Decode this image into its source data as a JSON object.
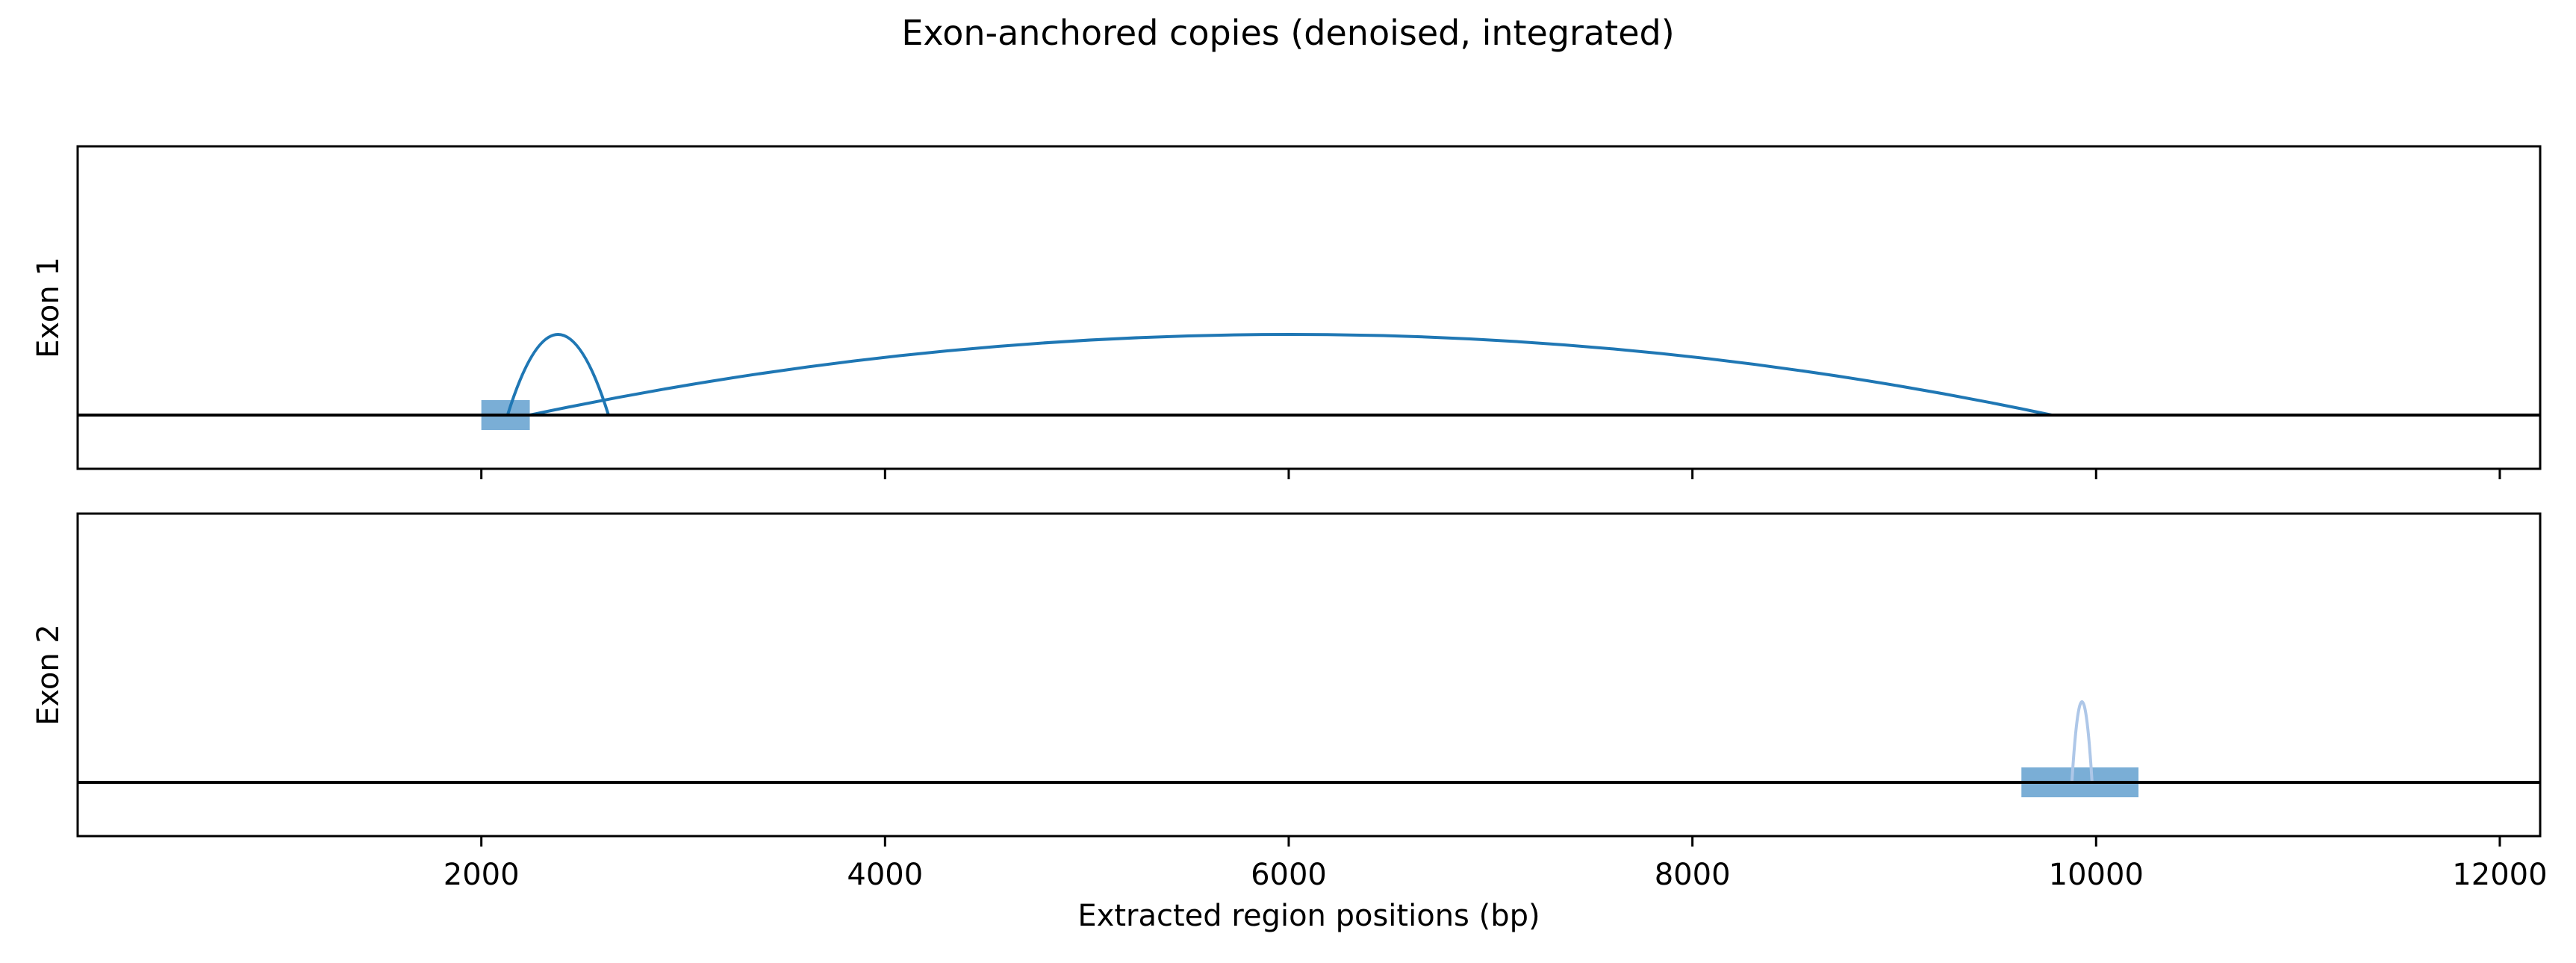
{
  "chart_data": {
    "type": "arc",
    "title": "Exon-anchored copies (denoised, integrated)",
    "xlabel": "Extracted region positions (bp)",
    "xlim": [
      0,
      12200
    ],
    "xticks": [
      2000,
      4000,
      6000,
      8000,
      10000,
      12000
    ],
    "xtick_labels": [
      "2000",
      "4000",
      "6000",
      "8000",
      "10000",
      "12000"
    ],
    "grid": false,
    "panels": [
      {
        "ylabel": "Exon 1",
        "exon": {
          "start": 2000,
          "end": 2240
        },
        "arcs": [
          {
            "start": 2130,
            "end": 2630,
            "height": 1.0,
            "color": "#1f77b4"
          },
          {
            "start": 2240,
            "end": 9780,
            "height": 1.0,
            "color": "#1f77b4"
          }
        ]
      },
      {
        "ylabel": "Exon 2",
        "exon": {
          "start": 9630,
          "end": 10210
        },
        "arcs": [
          {
            "start": 9880,
            "end": 9980,
            "height": 1.0,
            "color": "#aec7e8"
          }
        ]
      }
    ],
    "colors": {
      "exon_fill": "#7aaed6",
      "arc_primary": "#1f77b4",
      "arc_secondary": "#aec7e8",
      "baseline": "#000000"
    }
  }
}
